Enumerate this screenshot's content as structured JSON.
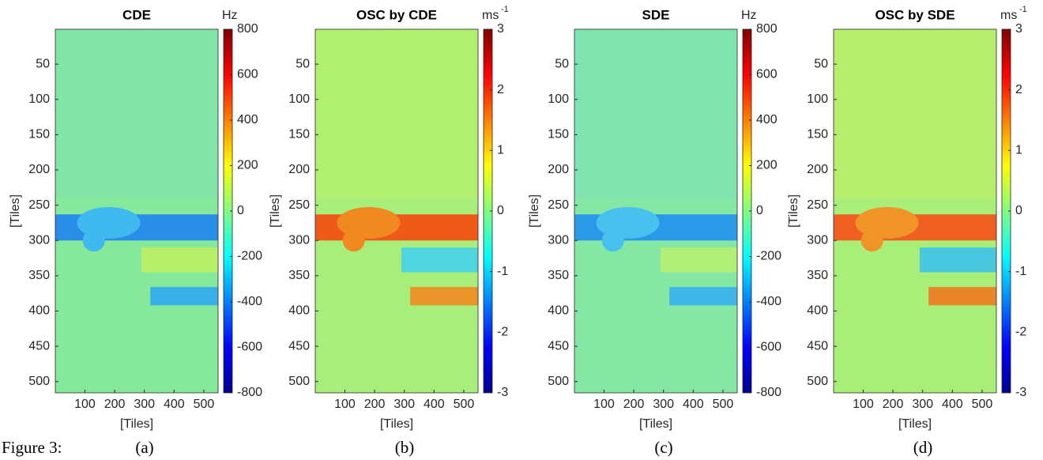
{
  "figure_label": "Figure 3:",
  "chart_data": [
    {
      "type": "heatmap",
      "title": "CDE",
      "caption": "(a)",
      "xlabel": "[Tiles]",
      "ylabel": "[Tiles]",
      "xlim": [
        0.5,
        548
      ],
      "ylim": [
        0.5,
        516
      ],
      "xticks": [
        100,
        200,
        300,
        400,
        500
      ],
      "yticks": [
        50,
        100,
        150,
        200,
        250,
        300,
        350,
        400,
        450,
        500
      ],
      "colormap": "jet",
      "colorbar": {
        "units": "Hz",
        "lim": [
          -800,
          800
        ],
        "ticks": [
          -800,
          -600,
          -400,
          -200,
          0,
          200,
          400,
          600,
          800
        ]
      }
    },
    {
      "type": "heatmap",
      "title": "OSC by CDE",
      "caption": "(b)",
      "xlabel": "[Tiles]",
      "ylabel": "[Tiles]",
      "xlim": [
        0.5,
        548
      ],
      "ylim": [
        0.5,
        516
      ],
      "xticks": [
        100,
        200,
        300,
        400,
        500
      ],
      "yticks": [
        50,
        100,
        150,
        200,
        250,
        300,
        350,
        400,
        450,
        500
      ],
      "colormap": "jet",
      "colorbar": {
        "units": "ms",
        "units_power": "-1",
        "lim": [
          -3,
          3
        ],
        "ticks": [
          -3,
          -2,
          -1,
          0,
          1,
          2,
          3
        ]
      }
    },
    {
      "type": "heatmap",
      "title": "SDE",
      "caption": "(c)",
      "xlabel": "[Tiles]",
      "ylabel": "[Tiles]",
      "xlim": [
        0.5,
        548
      ],
      "ylim": [
        0.5,
        516
      ],
      "xticks": [
        100,
        200,
        300,
        400,
        500
      ],
      "yticks": [
        50,
        100,
        150,
        200,
        250,
        300,
        350,
        400,
        450,
        500
      ],
      "colormap": "jet",
      "colorbar": {
        "units": "Hz",
        "lim": [
          -800,
          800
        ],
        "ticks": [
          -800,
          -600,
          -400,
          -200,
          0,
          200,
          400,
          600,
          800
        ]
      }
    },
    {
      "type": "heatmap",
      "title": "OSC by SDE",
      "caption": "(d)",
      "xlabel": "[Tiles]",
      "ylabel": "[Tiles]",
      "xlim": [
        0.5,
        548
      ],
      "ylim": [
        0.5,
        516
      ],
      "xticks": [
        100,
        200,
        300,
        400,
        500
      ],
      "yticks": [
        50,
        100,
        150,
        200,
        250,
        300,
        350,
        400,
        450,
        500
      ],
      "colormap": "jet",
      "colorbar": {
        "units": "ms",
        "units_power": "-1",
        "lim": [
          -3,
          3
        ],
        "ticks": [
          -3,
          -2,
          -1,
          0,
          1,
          2,
          3
        ]
      }
    }
  ]
}
